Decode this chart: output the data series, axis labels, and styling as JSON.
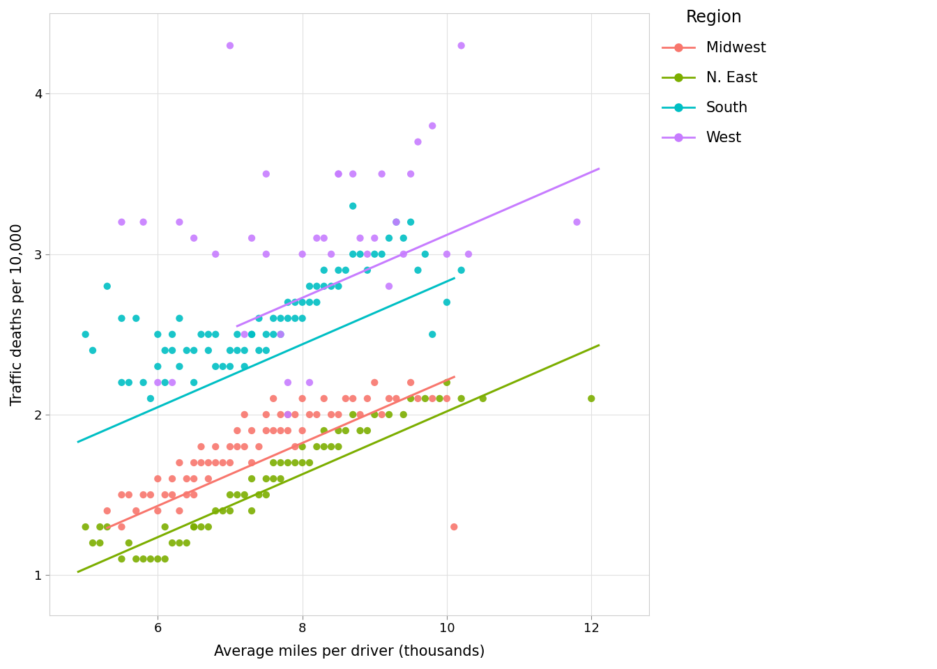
{
  "title": "",
  "xlabel": "Average miles per driver (thousands)",
  "ylabel": "Traffic deaths per 10,000",
  "xlim": [
    4.5,
    12.8
  ],
  "ylim": [
    0.75,
    4.5
  ],
  "xticks": [
    6,
    8,
    10,
    12
  ],
  "yticks": [
    1,
    2,
    3,
    4
  ],
  "background_color": "#ffffff",
  "panel_background": "#ffffff",
  "grid_color": "#e0e0e0",
  "colors": {
    "Midwest": "#F8766D",
    "N. East": "#7CAE00",
    "South": "#00BFC4",
    "West": "#C77CFF"
  },
  "groups": [
    "Midwest",
    "N. East",
    "South",
    "West"
  ],
  "slope": 0.196,
  "intercepts": {
    "Midwest": 0.255,
    "N. East": 0.06,
    "South": 0.87,
    "West": 1.16
  },
  "line_x_ranges": {
    "Midwest": [
      5.3,
      10.1
    ],
    "N. East": [
      4.9,
      12.1
    ],
    "South": [
      4.9,
      10.1
    ],
    "West": [
      7.1,
      12.1
    ]
  },
  "scatter_data": {
    "Midwest": {
      "x": [
        5.3,
        5.5,
        5.5,
        5.6,
        5.7,
        5.8,
        5.9,
        6.0,
        6.0,
        6.1,
        6.2,
        6.2,
        6.3,
        6.3,
        6.4,
        6.4,
        6.5,
        6.5,
        6.5,
        6.6,
        6.6,
        6.7,
        6.7,
        6.8,
        6.8,
        6.9,
        7.0,
        7.0,
        7.1,
        7.1,
        7.2,
        7.2,
        7.3,
        7.3,
        7.4,
        7.5,
        7.5,
        7.6,
        7.6,
        7.7,
        7.7,
        7.8,
        7.8,
        7.9,
        7.9,
        8.0,
        8.0,
        8.1,
        8.2,
        8.3,
        8.4,
        8.5,
        8.6,
        8.7,
        8.8,
        8.9,
        9.0,
        9.1,
        9.2,
        9.3,
        9.5,
        9.6,
        9.8,
        10.0,
        10.1
      ],
      "y": [
        1.4,
        1.3,
        1.5,
        1.5,
        1.4,
        1.5,
        1.5,
        1.4,
        1.6,
        1.5,
        1.6,
        1.5,
        1.7,
        1.4,
        1.6,
        1.5,
        1.7,
        1.6,
        1.5,
        1.7,
        1.8,
        1.7,
        1.6,
        1.8,
        1.7,
        1.7,
        1.8,
        1.7,
        1.8,
        1.9,
        1.8,
        2.0,
        1.9,
        1.7,
        1.8,
        1.9,
        2.0,
        1.9,
        2.1,
        1.9,
        2.0,
        2.0,
        1.9,
        2.0,
        1.8,
        2.1,
        1.9,
        2.0,
        2.0,
        2.1,
        2.0,
        2.0,
        2.1,
        2.1,
        2.0,
        2.1,
        2.2,
        2.0,
        2.1,
        2.1,
        2.2,
        2.1,
        2.1,
        2.1,
        1.3
      ]
    },
    "N. East": {
      "x": [
        5.0,
        5.1,
        5.2,
        5.2,
        5.3,
        5.5,
        5.6,
        5.7,
        5.8,
        5.9,
        6.0,
        6.1,
        6.1,
        6.2,
        6.3,
        6.4,
        6.5,
        6.5,
        6.6,
        6.7,
        6.8,
        6.9,
        7.0,
        7.0,
        7.1,
        7.2,
        7.3,
        7.3,
        7.4,
        7.5,
        7.5,
        7.6,
        7.6,
        7.7,
        7.7,
        7.8,
        7.9,
        8.0,
        8.0,
        8.1,
        8.2,
        8.3,
        8.3,
        8.4,
        8.5,
        8.5,
        8.6,
        8.7,
        8.8,
        8.9,
        9.0,
        9.2,
        9.4,
        9.5,
        9.7,
        9.9,
        10.0,
        10.2,
        10.5,
        12.0
      ],
      "y": [
        1.3,
        1.2,
        1.2,
        1.3,
        1.3,
        1.1,
        1.2,
        1.1,
        1.1,
        1.1,
        1.1,
        1.3,
        1.1,
        1.2,
        1.2,
        1.2,
        1.3,
        1.3,
        1.3,
        1.3,
        1.4,
        1.4,
        1.4,
        1.5,
        1.5,
        1.5,
        1.4,
        1.6,
        1.5,
        1.5,
        1.6,
        1.6,
        1.7,
        1.7,
        1.6,
        1.7,
        1.7,
        1.7,
        1.8,
        1.7,
        1.8,
        1.8,
        1.9,
        1.8,
        1.9,
        1.8,
        1.9,
        2.0,
        1.9,
        1.9,
        2.0,
        2.0,
        2.0,
        2.1,
        2.1,
        2.1,
        2.2,
        2.1,
        2.1,
        2.1
      ]
    },
    "South": {
      "x": [
        5.0,
        5.1,
        5.3,
        5.5,
        5.5,
        5.6,
        5.7,
        5.8,
        5.9,
        6.0,
        6.0,
        6.1,
        6.1,
        6.2,
        6.2,
        6.3,
        6.3,
        6.4,
        6.5,
        6.5,
        6.6,
        6.7,
        6.7,
        6.8,
        6.8,
        6.9,
        7.0,
        7.0,
        7.1,
        7.1,
        7.2,
        7.2,
        7.3,
        7.3,
        7.4,
        7.4,
        7.5,
        7.5,
        7.6,
        7.6,
        7.7,
        7.7,
        7.8,
        7.8,
        7.9,
        7.9,
        8.0,
        8.0,
        8.1,
        8.1,
        8.2,
        8.2,
        8.3,
        8.3,
        8.4,
        8.5,
        8.5,
        8.6,
        8.7,
        8.7,
        8.8,
        8.9,
        9.0,
        9.1,
        9.2,
        9.3,
        9.4,
        9.5,
        9.6,
        9.7,
        9.8,
        10.0,
        10.2
      ],
      "y": [
        2.5,
        2.4,
        2.8,
        2.2,
        2.6,
        2.2,
        2.6,
        2.2,
        2.1,
        2.3,
        2.5,
        2.4,
        2.2,
        2.4,
        2.5,
        2.3,
        2.6,
        2.4,
        2.2,
        2.4,
        2.5,
        2.4,
        2.5,
        2.5,
        2.3,
        2.3,
        2.3,
        2.4,
        2.4,
        2.5,
        2.3,
        2.4,
        2.5,
        2.5,
        2.4,
        2.6,
        2.5,
        2.4,
        2.5,
        2.6,
        2.5,
        2.6,
        2.6,
        2.7,
        2.6,
        2.7,
        2.6,
        2.7,
        2.7,
        2.8,
        2.7,
        2.8,
        2.8,
        2.9,
        2.8,
        2.8,
        2.9,
        2.9,
        3.0,
        3.3,
        3.0,
        2.9,
        3.0,
        3.0,
        3.1,
        3.2,
        3.1,
        3.2,
        2.9,
        3.0,
        2.5,
        2.7,
        2.9
      ]
    },
    "West": {
      "x": [
        5.5,
        5.8,
        6.0,
        6.2,
        6.3,
        6.5,
        6.8,
        7.0,
        7.2,
        7.3,
        7.5,
        7.5,
        7.7,
        7.8,
        7.8,
        8.0,
        8.1,
        8.2,
        8.3,
        8.4,
        8.5,
        8.5,
        8.7,
        8.8,
        8.9,
        9.0,
        9.1,
        9.2,
        9.3,
        9.4,
        9.5,
        9.6,
        9.8,
        10.0,
        10.2,
        10.3,
        11.8
      ],
      "y": [
        3.2,
        3.2,
        2.2,
        2.2,
        3.2,
        3.1,
        3.0,
        4.3,
        2.5,
        3.1,
        3.5,
        3.0,
        2.5,
        2.2,
        2.0,
        3.0,
        2.2,
        3.1,
        3.1,
        3.0,
        3.5,
        3.5,
        3.5,
        3.1,
        3.0,
        3.1,
        3.5,
        2.8,
        3.2,
        3.0,
        3.5,
        3.7,
        3.8,
        3.0,
        4.3,
        3.0,
        3.2
      ]
    }
  }
}
